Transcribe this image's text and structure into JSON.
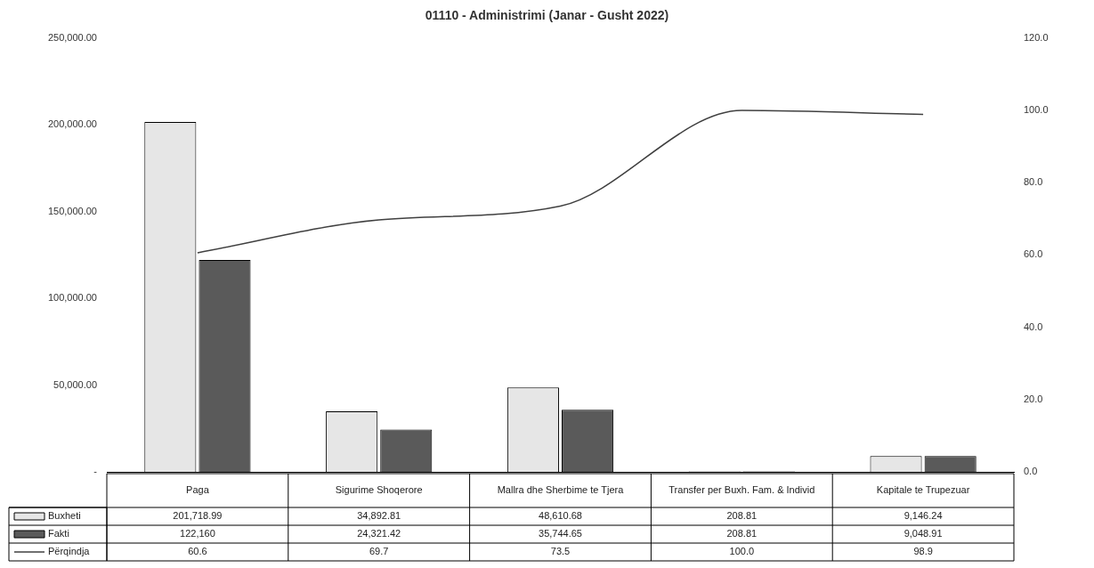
{
  "chart_data": {
    "type": "bar",
    "title": "01110 - Administrimi (Janar - Gusht 2022)",
    "categories": [
      "Paga",
      "Sigurime Shoqerore",
      "Mallra dhe Sherbime te Tjera",
      "Transfer per Buxh. Fam. & Individ",
      "Kapitale te Trupezuar"
    ],
    "series": [
      {
        "name": "Buxheti",
        "color": "#e6e6e6",
        "values": [
          201718.99,
          34892.81,
          48610.68,
          208.81,
          9146.24
        ],
        "value_labels": [
          "201,718.99",
          "34,892.81",
          "48,610.68",
          "208.81",
          "9,146.24"
        ]
      },
      {
        "name": "Fakti",
        "color": "#5a5a5a",
        "values": [
          122160,
          24321.42,
          35744.65,
          208.81,
          9048.91
        ],
        "value_labels": [
          "122,160",
          "24,321.42",
          "35,744.65",
          "208.81",
          "9,048.91"
        ]
      },
      {
        "name": "Përqindja",
        "type": "line",
        "axis": "y2",
        "color": "#404040",
        "values": [
          60.6,
          69.7,
          73.5,
          100.0,
          98.9
        ],
        "value_labels": [
          "60.6",
          "69.7",
          "73.5",
          "100.0",
          "98.9"
        ]
      }
    ],
    "ylim": [
      0,
      250000
    ],
    "yticks": [
      {
        "value": 0,
        "label": "-"
      },
      {
        "value": 50000,
        "label": "50,000.00"
      },
      {
        "value": 100000,
        "label": "100,000.00"
      },
      {
        "value": 150000,
        "label": "150,000.00"
      },
      {
        "value": 200000,
        "label": "200,000.00"
      },
      {
        "value": 250000,
        "label": "250,000.00"
      }
    ],
    "y2lim": [
      0,
      120
    ],
    "y2ticks": [
      {
        "value": 0,
        "label": "0.0"
      },
      {
        "value": 20,
        "label": "20.0"
      },
      {
        "value": 40,
        "label": "40.0"
      },
      {
        "value": 60,
        "label": "60.0"
      },
      {
        "value": 80,
        "label": "80.0"
      },
      {
        "value": 100,
        "label": "100.0"
      },
      {
        "value": 120,
        "label": "120.0"
      }
    ],
    "grid": false,
    "legend": "bottom",
    "marker": "none",
    "line_style": "solid"
  }
}
